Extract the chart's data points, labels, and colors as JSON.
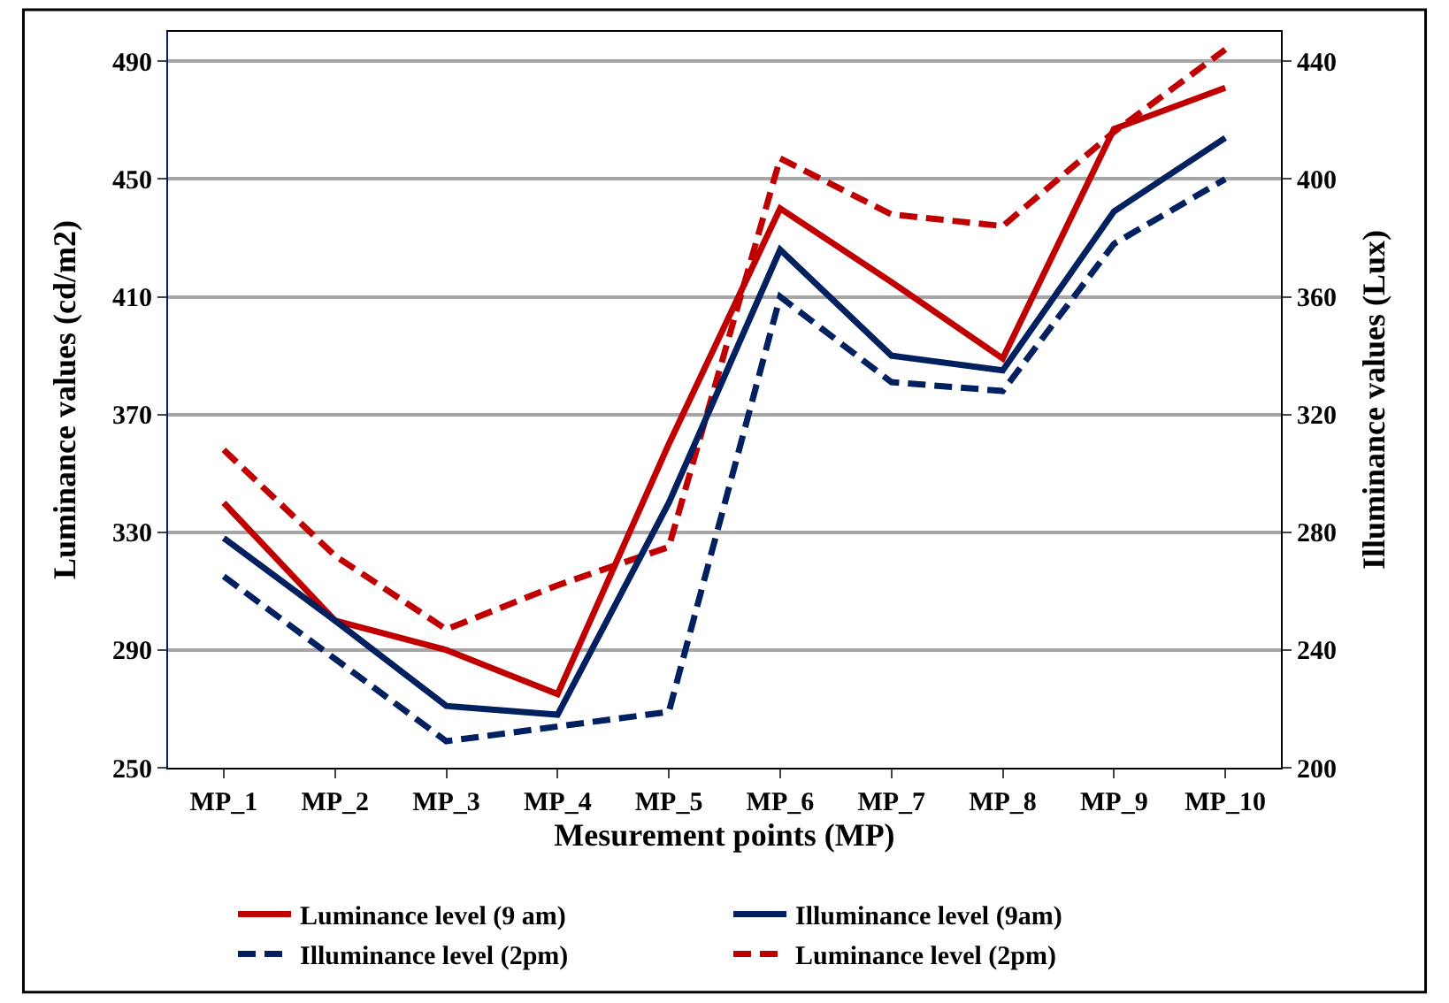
{
  "chart_data": {
    "type": "line",
    "xlabel": "Mesurement points (MP)",
    "ylabel": "Luminance values (cd/m2)",
    "y2label": "Illuminance values (Lux)",
    "categories": [
      "MP_1",
      "MP_2",
      "MP_3",
      "MP_4",
      "MP_5",
      "MP_6",
      "MP_7",
      "MP_8",
      "MP_9",
      "MP_10"
    ],
    "series": [
      {
        "name": "Luminance level (9 am)",
        "color": "#c00000",
        "line_style": "solid",
        "values": [
          340,
          300,
          290,
          275,
          360,
          440,
          415,
          389,
          467,
          481
        ]
      },
      {
        "name": "Illuminance level (9am)",
        "color": "#002060",
        "line_style": "solid",
        "axis": "y2",
        "values": [
          278,
          250,
          221,
          218,
          290,
          376,
          340,
          335,
          389,
          414
        ]
      },
      {
        "name": "Illuminance level (2pm)",
        "color": "#002060",
        "line_style": "dashed",
        "axis": "y2",
        "values": [
          265,
          237,
          209,
          214,
          219,
          360,
          331,
          328,
          378,
          400
        ]
      },
      {
        "name": "Luminance level (2pm)",
        "color": "#c00000",
        "line_style": "dashed",
        "values": [
          358,
          322,
          297,
          312,
          325,
          457,
          438,
          434,
          466,
          494
        ]
      }
    ],
    "ylim": [
      250,
      500
    ],
    "yticks": [
      250,
      290,
      330,
      370,
      410,
      450,
      490
    ],
    "y2lim": [
      200,
      450
    ],
    "y2ticks": [
      200,
      240,
      280,
      320,
      360,
      400,
      440
    ],
    "grid": "y",
    "legend": "bottom",
    "marker": "none"
  }
}
